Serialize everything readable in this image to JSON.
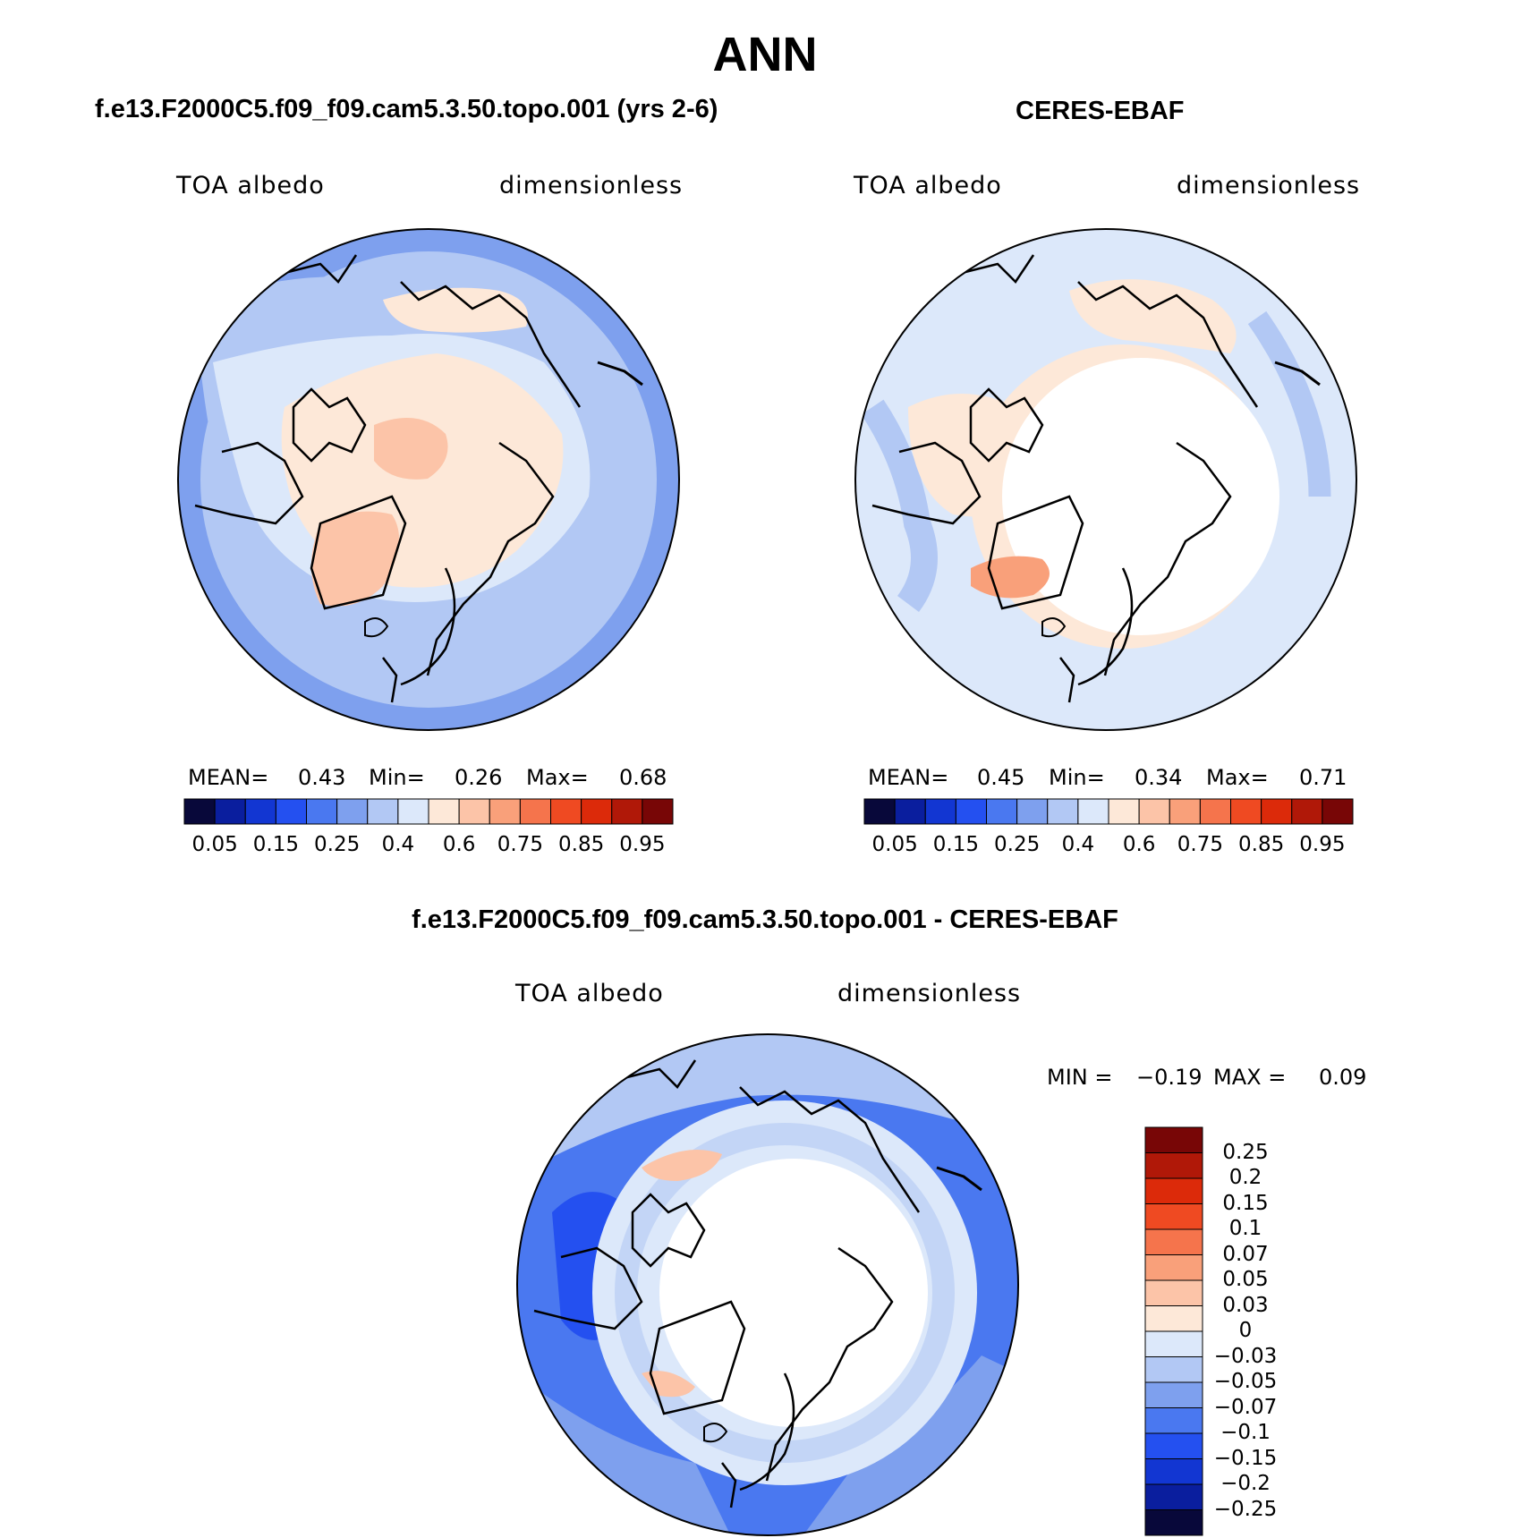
{
  "title": "ANN",
  "palettes": {
    "abs": [
      "#08083a",
      "#0a1e9e",
      "#1236d2",
      "#2450f0",
      "#4a78f0",
      "#7ea0ee",
      "#b2c8f4",
      "#dce8fa",
      "#fde8d8",
      "#fcc4a8",
      "#f9a07a",
      "#f5744c",
      "#ef4a22",
      "#dc2a0a",
      "#b01808",
      "#780606"
    ],
    "diff": [
      "#08083a",
      "#0a1e9e",
      "#1236d2",
      "#2450f0",
      "#4a78f0",
      "#7ea0ee",
      "#b2c8f4",
      "#dce8fa",
      "#fde8d8",
      "#fcc4a8",
      "#f9a07a",
      "#f5744c",
      "#ef4a22",
      "#dc2a0a",
      "#b01808",
      "#780606"
    ]
  },
  "panels": [
    {
      "title": "f.e13.F2000C5.f09_f09.cam5.3.50.topo.001 (yrs 2-6)",
      "variable": "TOA albedo",
      "units": "dimensionless",
      "stats": {
        "mean_label": "MEAN=",
        "mean": "0.43",
        "min_label": "Min=",
        "min": "0.26",
        "max_label": "Max=",
        "max": "0.68"
      },
      "colorbar_ticks": [
        "0.05",
        "0.15",
        "0.25",
        "0.4",
        "0.6",
        "0.75",
        "0.85",
        "0.95"
      ]
    },
    {
      "title": "CERES-EBAF",
      "variable": "TOA albedo",
      "units": "dimensionless",
      "stats": {
        "mean_label": "MEAN=",
        "mean": "0.45",
        "min_label": "Min=",
        "min": "0.34",
        "max_label": "Max=",
        "max": "0.71"
      },
      "colorbar_ticks": [
        "0.05",
        "0.15",
        "0.25",
        "0.4",
        "0.6",
        "0.75",
        "0.85",
        "0.95"
      ]
    },
    {
      "title": "f.e13.F2000C5.f09_f09.cam5.3.50.topo.001 - CERES-EBAF",
      "variable": "TOA albedo",
      "units": "dimensionless",
      "stats": {
        "min_label": "MIN =",
        "min": "−0.19",
        "max_label": "MAX =",
        "max": "0.09"
      },
      "colorbar_ticks": [
        "0.25",
        "0.2",
        "0.15",
        "0.1",
        "0.07",
        "0.05",
        "0.03",
        "0",
        "−0.03",
        "−0.05",
        "−0.07",
        "−0.1",
        "−0.15",
        "−0.2",
        "−0.25"
      ]
    }
  ]
}
